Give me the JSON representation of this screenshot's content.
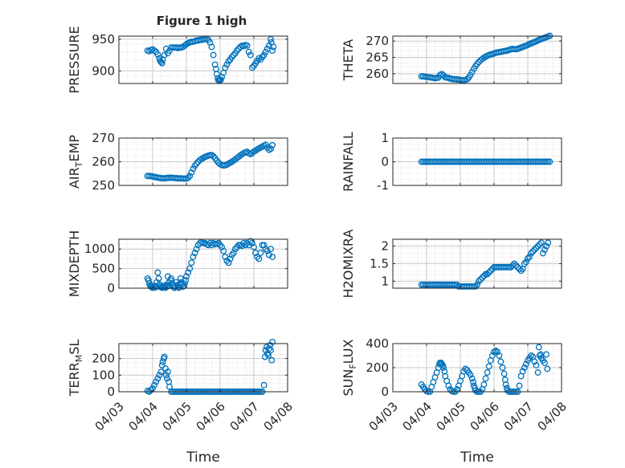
{
  "title": "Figure 1 high",
  "marker_color": "#0072BD",
  "x_tick_labels": [
    "04/03",
    "04/04",
    "04/05",
    "04/06",
    "04/07",
    "04/08"
  ],
  "x_label": "Time",
  "chart_data": [
    {
      "type": "scatter",
      "ylabel": "PRESSURE",
      "title": "Figure 1 high",
      "x": [
        3.85,
        3.9,
        3.95,
        4.0,
        4.05,
        4.1,
        4.15,
        4.2,
        4.22,
        4.25,
        4.28,
        4.3,
        4.35,
        4.4,
        4.45,
        4.5,
        4.55,
        4.6,
        4.65,
        4.7,
        4.75,
        4.8,
        4.85,
        4.9,
        4.95,
        5.0,
        5.05,
        5.1,
        5.15,
        5.2,
        5.25,
        5.3,
        5.35,
        5.4,
        5.45,
        5.5,
        5.55,
        5.6,
        5.65,
        5.7,
        5.75,
        5.8,
        5.85,
        5.88,
        5.9,
        5.93,
        5.95,
        5.97,
        6.0,
        6.02,
        6.05,
        6.1,
        6.15,
        6.2,
        6.25,
        6.3,
        6.35,
        6.4,
        6.45,
        6.5,
        6.55,
        6.6,
        6.65,
        6.7,
        6.75,
        6.8,
        6.85,
        6.9,
        6.95,
        7.0,
        7.05,
        7.1,
        7.15,
        7.2,
        7.25,
        7.3,
        7.35,
        7.4,
        7.45,
        7.5,
        7.52,
        7.55,
        7.58
      ],
      "y": [
        932,
        931,
        933,
        934,
        932,
        930,
        926,
        920,
        916,
        914,
        912,
        918,
        925,
        935,
        928,
        932,
        937,
        937,
        937,
        937,
        936,
        937,
        937,
        938,
        940,
        942,
        944,
        945,
        946,
        946,
        947,
        948,
        948,
        949,
        949,
        950,
        950,
        951,
        949,
        945,
        938,
        925,
        910,
        903,
        895,
        888,
        885,
        884,
        885,
        886,
        890,
        897,
        905,
        910,
        915,
        918,
        922,
        925,
        928,
        932,
        935,
        938,
        940,
        939,
        941,
        940,
        930,
        925,
        905,
        908,
        912,
        916,
        920,
        918,
        922,
        925,
        930,
        935,
        940,
        950,
        945,
        932,
        938
      ]
    },
    {
      "type": "scatter",
      "ylabel": "THETA",
      "x": [
        3.85,
        3.9,
        3.95,
        4.0,
        4.05,
        4.1,
        4.15,
        4.2,
        4.25,
        4.3,
        4.35,
        4.4,
        4.45,
        4.5,
        4.55,
        4.6,
        4.65,
        4.7,
        4.75,
        4.8,
        4.85,
        4.9,
        4.95,
        5.0,
        5.05,
        5.1,
        5.15,
        5.2,
        5.25,
        5.3,
        5.35,
        5.4,
        5.45,
        5.5,
        5.55,
        5.6,
        5.65,
        5.7,
        5.75,
        5.8,
        5.85,
        5.9,
        5.95,
        6.0,
        6.05,
        6.1,
        6.15,
        6.2,
        6.25,
        6.3,
        6.35,
        6.4,
        6.45,
        6.5,
        6.55,
        6.6,
        6.65,
        6.7,
        6.75,
        6.8,
        6.85,
        6.9,
        6.95,
        7.0,
        7.05,
        7.1,
        7.15,
        7.2,
        7.25,
        7.3,
        7.35,
        7.4,
        7.45,
        7.5,
        7.55,
        7.6,
        7.65
      ],
      "y": [
        259.2,
        259.2,
        259.1,
        259.0,
        258.9,
        258.9,
        258.8,
        258.7,
        258.6,
        258.7,
        258.8,
        259.6,
        259.9,
        259.5,
        258.9,
        258.8,
        258.7,
        258.5,
        258.4,
        258.3,
        258.3,
        258.2,
        258.2,
        258.1,
        258.0,
        258.0,
        258.1,
        258.3,
        258.8,
        259.6,
        260.5,
        261.5,
        262.3,
        263.0,
        263.6,
        264.1,
        264.5,
        264.9,
        265.2,
        265.5,
        265.7,
        265.9,
        266.0,
        266.2,
        266.4,
        266.5,
        266.6,
        266.7,
        266.8,
        266.9,
        267.0,
        267.1,
        267.3,
        267.5,
        267.6,
        267.5,
        267.5,
        267.6,
        267.8,
        268.0,
        268.2,
        268.4,
        268.6,
        268.8,
        269.1,
        269.3,
        269.5,
        269.7,
        269.9,
        270.2,
        270.4,
        270.6,
        270.8,
        271.0,
        271.2,
        271.4,
        271.6
      ]
    },
    {
      "type": "scatter",
      "ylabel": "AIR_TEMP",
      "x": [
        3.85,
        3.9,
        3.95,
        4.0,
        4.05,
        4.1,
        4.15,
        4.2,
        4.25,
        4.3,
        4.35,
        4.4,
        4.45,
        4.5,
        4.55,
        4.6,
        4.65,
        4.7,
        4.75,
        4.8,
        4.85,
        4.9,
        4.95,
        5.0,
        5.05,
        5.1,
        5.15,
        5.2,
        5.25,
        5.3,
        5.35,
        5.4,
        5.45,
        5.5,
        5.55,
        5.6,
        5.65,
        5.7,
        5.75,
        5.8,
        5.85,
        5.9,
        5.95,
        6.0,
        6.05,
        6.1,
        6.15,
        6.2,
        6.25,
        6.3,
        6.35,
        6.4,
        6.45,
        6.5,
        6.55,
        6.6,
        6.65,
        6.7,
        6.75,
        6.8,
        6.85,
        6.9,
        6.95,
        7.0,
        7.05,
        7.1,
        7.15,
        7.2,
        7.25,
        7.3,
        7.35,
        7.4,
        7.45,
        7.5,
        7.55
      ],
      "y": [
        254.0,
        254.0,
        253.9,
        253.8,
        253.6,
        253.5,
        253.3,
        253.2,
        253.1,
        253.0,
        253.0,
        253.1,
        253.2,
        253.2,
        253.3,
        253.2,
        253.1,
        253.1,
        253.0,
        253.0,
        253.0,
        252.9,
        252.9,
        252.9,
        253.2,
        254.0,
        255.5,
        257.0,
        258.3,
        259.2,
        260.0,
        260.7,
        261.2,
        261.6,
        262.0,
        262.3,
        262.6,
        262.8,
        262.8,
        262.3,
        261.5,
        260.5,
        259.6,
        259.0,
        258.6,
        258.4,
        258.5,
        258.8,
        259.2,
        259.6,
        260.0,
        260.5,
        261.0,
        261.6,
        262.1,
        262.7,
        263.2,
        263.6,
        264.0,
        264.2,
        263.6,
        263.2,
        263.7,
        264.3,
        264.7,
        265.2,
        265.6,
        266.0,
        266.4,
        266.8,
        267.2,
        266.0,
        265.0,
        265.5,
        267.0
      ]
    },
    {
      "type": "scatter",
      "ylabel": "RAINFALL",
      "x": [
        3.85,
        3.9,
        3.95,
        4.0,
        4.05,
        4.1,
        4.15,
        4.2,
        4.25,
        4.3,
        4.35,
        4.4,
        4.45,
        4.5,
        4.55,
        4.6,
        4.65,
        4.7,
        4.75,
        4.8,
        4.85,
        4.9,
        4.95,
        5.0,
        5.05,
        5.1,
        5.15,
        5.2,
        5.25,
        5.3,
        5.35,
        5.4,
        5.45,
        5.5,
        5.55,
        5.6,
        5.65,
        5.7,
        5.75,
        5.8,
        5.85,
        5.9,
        5.95,
        6.0,
        6.05,
        6.1,
        6.15,
        6.2,
        6.25,
        6.3,
        6.35,
        6.4,
        6.45,
        6.5,
        6.55,
        6.6,
        6.65,
        6.7,
        6.75,
        6.8,
        6.85,
        6.9,
        6.95,
        7.0,
        7.05,
        7.1,
        7.15,
        7.2,
        7.25,
        7.3,
        7.35,
        7.4,
        7.45,
        7.5,
        7.55,
        7.6,
        7.65
      ],
      "y": [
        0,
        0,
        0,
        0,
        0,
        0,
        0,
        0,
        0,
        0,
        0,
        0,
        0,
        0,
        0,
        0,
        0,
        0,
        0,
        0,
        0,
        0,
        0,
        0,
        0,
        0,
        0,
        0,
        0,
        0,
        0,
        0,
        0,
        0,
        0,
        0,
        0,
        0,
        0,
        0,
        0,
        0,
        0,
        0,
        0,
        0,
        0,
        0,
        0,
        0,
        0,
        0,
        0,
        0,
        0,
        0,
        0,
        0,
        0,
        0,
        0,
        0,
        0,
        0,
        0,
        0,
        0,
        0,
        0,
        0,
        0,
        0,
        0,
        0,
        0,
        0,
        0
      ]
    },
    {
      "type": "scatter",
      "ylabel": "MIXDEPTH",
      "x": [
        3.85,
        3.88,
        3.9,
        3.93,
        3.95,
        3.98,
        4.0,
        4.03,
        4.05,
        4.08,
        4.1,
        4.12,
        4.15,
        4.18,
        4.2,
        4.23,
        4.25,
        4.28,
        4.3,
        4.33,
        4.35,
        4.38,
        4.4,
        4.43,
        4.45,
        4.48,
        4.5,
        4.53,
        4.55,
        4.58,
        4.6,
        4.63,
        4.65,
        4.68,
        4.7,
        4.73,
        4.75,
        4.78,
        4.8,
        4.83,
        4.85,
        4.88,
        4.9,
        4.93,
        4.95,
        4.98,
        5.0,
        5.05,
        5.1,
        5.15,
        5.2,
        5.25,
        5.3,
        5.35,
        5.4,
        5.45,
        5.5,
        5.55,
        5.6,
        5.65,
        5.7,
        5.75,
        5.8,
        5.85,
        5.9,
        5.95,
        6.0,
        6.05,
        6.1,
        6.15,
        6.2,
        6.25,
        6.3,
        6.35,
        6.4,
        6.45,
        6.5,
        6.55,
        6.6,
        6.65,
        6.7,
        6.75,
        6.8,
        6.85,
        6.9,
        6.95,
        7.0,
        7.05,
        7.1,
        7.15,
        7.2,
        7.25,
        7.3,
        7.35,
        7.4,
        7.45,
        7.5,
        7.55
      ],
      "y": [
        250,
        200,
        120,
        60,
        40,
        20,
        10,
        30,
        60,
        20,
        50,
        150,
        400,
        250,
        100,
        50,
        20,
        10,
        30,
        60,
        20,
        10,
        80,
        40,
        300,
        150,
        60,
        200,
        250,
        120,
        60,
        20,
        10,
        40,
        150,
        80,
        30,
        10,
        100,
        250,
        150,
        100,
        40,
        60,
        120,
        200,
        300,
        400,
        500,
        650,
        800,
        900,
        1000,
        1100,
        1150,
        1180,
        1150,
        1150,
        1120,
        1100,
        1150,
        1100,
        1150,
        1120,
        1130,
        1150,
        1100,
        1050,
        950,
        800,
        700,
        650,
        750,
        850,
        900,
        1000,
        1050,
        1100,
        1100,
        1080,
        1150,
        1100,
        1150,
        1100,
        1200,
        1150,
        1050,
        900,
        800,
        750,
        900,
        1100,
        1100,
        1000,
        950,
        850,
        1000,
        800
      ]
    },
    {
      "type": "scatter",
      "ylabel": "H2OMIXRA",
      "x": [
        3.85,
        3.9,
        3.95,
        4.0,
        4.05,
        4.1,
        4.15,
        4.2,
        4.25,
        4.3,
        4.35,
        4.4,
        4.45,
        4.5,
        4.55,
        4.6,
        4.65,
        4.7,
        4.75,
        4.8,
        4.85,
        4.9,
        4.95,
        5.0,
        5.05,
        5.1,
        5.15,
        5.2,
        5.25,
        5.3,
        5.35,
        5.4,
        5.45,
        5.5,
        5.55,
        5.6,
        5.65,
        5.7,
        5.75,
        5.8,
        5.85,
        5.9,
        5.95,
        6.0,
        6.05,
        6.1,
        6.15,
        6.2,
        6.25,
        6.3,
        6.35,
        6.4,
        6.45,
        6.5,
        6.55,
        6.6,
        6.65,
        6.7,
        6.75,
        6.8,
        6.85,
        6.9,
        6.95,
        7.0,
        7.05,
        7.1,
        7.15,
        7.2,
        7.25,
        7.3,
        7.35,
        7.4,
        7.45,
        7.5,
        7.55,
        7.6
      ],
      "y": [
        0.9,
        0.9,
        0.9,
        0.9,
        0.9,
        0.9,
        0.9,
        0.9,
        0.9,
        0.9,
        0.9,
        0.9,
        0.9,
        0.9,
        0.9,
        0.9,
        0.9,
        0.9,
        0.9,
        0.9,
        0.9,
        0.9,
        0.85,
        0.85,
        0.85,
        0.85,
        0.85,
        0.85,
        0.85,
        0.85,
        0.85,
        0.85,
        0.85,
        0.9,
        1.0,
        1.05,
        1.1,
        1.15,
        1.2,
        1.2,
        1.25,
        1.3,
        1.35,
        1.4,
        1.4,
        1.4,
        1.4,
        1.4,
        1.4,
        1.4,
        1.4,
        1.4,
        1.4,
        1.4,
        1.45,
        1.5,
        1.45,
        1.4,
        1.35,
        1.3,
        1.35,
        1.5,
        1.55,
        1.65,
        1.7,
        1.8,
        1.85,
        1.9,
        1.95,
        2.0,
        2.05,
        2.1,
        1.8,
        1.9,
        2.0,
        2.1
      ]
    },
    {
      "type": "scatter",
      "ylabel": "TERR_MSL",
      "x": [
        3.85,
        3.9,
        3.95,
        4.0,
        4.05,
        4.1,
        4.15,
        4.2,
        4.25,
        4.28,
        4.3,
        4.33,
        4.35,
        4.38,
        4.4,
        4.43,
        4.45,
        4.48,
        4.5,
        4.55,
        4.6,
        4.65,
        4.7,
        4.75,
        4.8,
        4.85,
        4.9,
        4.95,
        5.0,
        5.05,
        5.1,
        5.15,
        5.2,
        5.25,
        5.3,
        5.35,
        5.4,
        5.45,
        5.5,
        5.55,
        5.6,
        5.65,
        5.7,
        5.75,
        5.8,
        5.85,
        5.9,
        5.95,
        6.0,
        6.05,
        6.1,
        6.15,
        6.2,
        6.25,
        6.3,
        6.35,
        6.4,
        6.45,
        6.5,
        6.55,
        6.6,
        6.65,
        6.7,
        6.75,
        6.8,
        6.85,
        6.9,
        6.95,
        7.0,
        7.05,
        7.1,
        7.15,
        7.2,
        7.25,
        7.3,
        7.33,
        7.35,
        7.38,
        7.4,
        7.43,
        7.45,
        7.48,
        7.5,
        7.53,
        7.55
      ],
      "y": [
        5,
        0,
        10,
        20,
        40,
        60,
        80,
        100,
        120,
        160,
        180,
        200,
        210,
        140,
        100,
        80,
        120,
        60,
        30,
        0,
        0,
        0,
        0,
        0,
        0,
        0,
        0,
        0,
        0,
        0,
        0,
        0,
        0,
        0,
        0,
        0,
        0,
        0,
        0,
        0,
        0,
        0,
        0,
        0,
        0,
        0,
        0,
        0,
        0,
        0,
        0,
        0,
        0,
        0,
        0,
        0,
        0,
        0,
        0,
        0,
        0,
        0,
        0,
        0,
        0,
        0,
        0,
        0,
        0,
        0,
        0,
        0,
        0,
        0,
        40,
        210,
        250,
        270,
        230,
        220,
        260,
        280,
        250,
        190,
        300
      ]
    },
    {
      "type": "scatter",
      "ylabel": "SUN_FLUX",
      "x": [
        3.85,
        3.9,
        3.95,
        4.0,
        4.05,
        4.1,
        4.15,
        4.2,
        4.25,
        4.3,
        4.35,
        4.38,
        4.4,
        4.43,
        4.45,
        4.48,
        4.5,
        4.53,
        4.55,
        4.6,
        4.65,
        4.7,
        4.75,
        4.8,
        4.85,
        4.9,
        4.95,
        5.0,
        5.05,
        5.1,
        5.15,
        5.2,
        5.25,
        5.3,
        5.35,
        5.38,
        5.4,
        5.43,
        5.45,
        5.5,
        5.55,
        5.6,
        5.65,
        5.7,
        5.75,
        5.8,
        5.85,
        5.9,
        5.95,
        6.0,
        6.05,
        6.1,
        6.15,
        6.2,
        6.25,
        6.3,
        6.33,
        6.35,
        6.38,
        6.4,
        6.45,
        6.5,
        6.55,
        6.6,
        6.65,
        6.7,
        6.75,
        6.8,
        6.85,
        6.9,
        6.95,
        7.0,
        7.05,
        7.1,
        7.15,
        7.2,
        7.25,
        7.3,
        7.33,
        7.35,
        7.38,
        7.4,
        7.45,
        7.5,
        7.55,
        7.58
      ],
      "y": [
        60,
        40,
        20,
        5,
        0,
        0,
        40,
        80,
        120,
        160,
        200,
        230,
        240,
        240,
        230,
        220,
        200,
        170,
        130,
        90,
        50,
        20,
        5,
        0,
        0,
        20,
        50,
        90,
        130,
        170,
        190,
        180,
        160,
        140,
        110,
        80,
        50,
        30,
        10,
        0,
        0,
        0,
        20,
        60,
        110,
        160,
        210,
        260,
        300,
        330,
        340,
        330,
        300,
        250,
        200,
        150,
        100,
        60,
        30,
        10,
        0,
        0,
        0,
        0,
        0,
        0,
        50,
        130,
        170,
        200,
        230,
        260,
        280,
        300,
        290,
        250,
        220,
        160,
        370,
        300,
        310,
        280,
        260,
        240,
        310,
        190
      ]
    }
  ]
}
